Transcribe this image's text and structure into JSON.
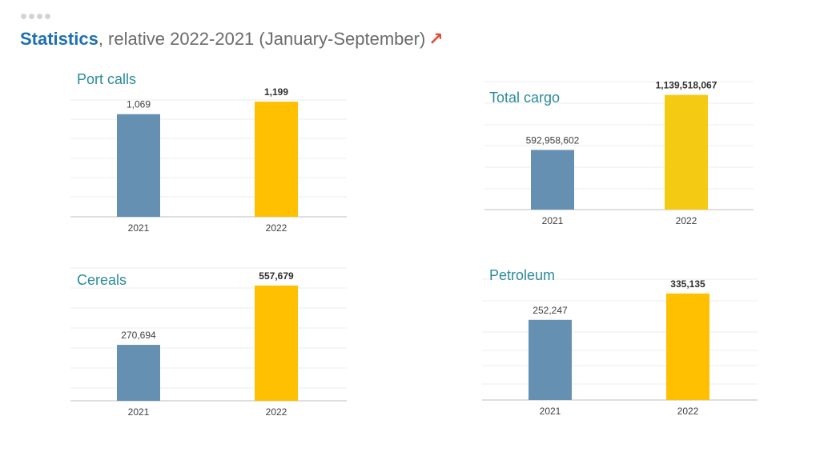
{
  "header": {
    "title_strong": "Statistics",
    "title_rest": ", relative 2022-2021 (January-September)",
    "arrow": "↗"
  },
  "colors": {
    "y2021": "#6690b2",
    "y2022": "#fec000",
    "y2022_cargo": "#f4cb12"
  },
  "chart_data": [
    {
      "type": "bar",
      "title": "Port calls",
      "categories": [
        "2021",
        "2022"
      ],
      "values": [
        1069,
        1199
      ],
      "labels": [
        "1,069",
        "1,199"
      ],
      "ylim": [
        0,
        1200
      ]
    },
    {
      "type": "bar",
      "title": "Total cargo",
      "categories": [
        "2021",
        "2022"
      ],
      "values": [
        592958602,
        1139518067
      ],
      "labels": [
        "592,958,602",
        "1,139,518,067"
      ],
      "ylim": [
        0,
        1200000000
      ]
    },
    {
      "type": "bar",
      "title": "Cereals",
      "categories": [
        "2021",
        "2022"
      ],
      "values": [
        270694,
        557679
      ],
      "labels": [
        "270,694",
        "557,679"
      ],
      "ylim": [
        0,
        600000
      ]
    },
    {
      "type": "bar",
      "title": "Petroleum",
      "categories": [
        "2021",
        "2022"
      ],
      "values": [
        252247,
        335135
      ],
      "labels": [
        "252,247",
        "335,135"
      ],
      "ylim": [
        0,
        360000
      ]
    }
  ]
}
